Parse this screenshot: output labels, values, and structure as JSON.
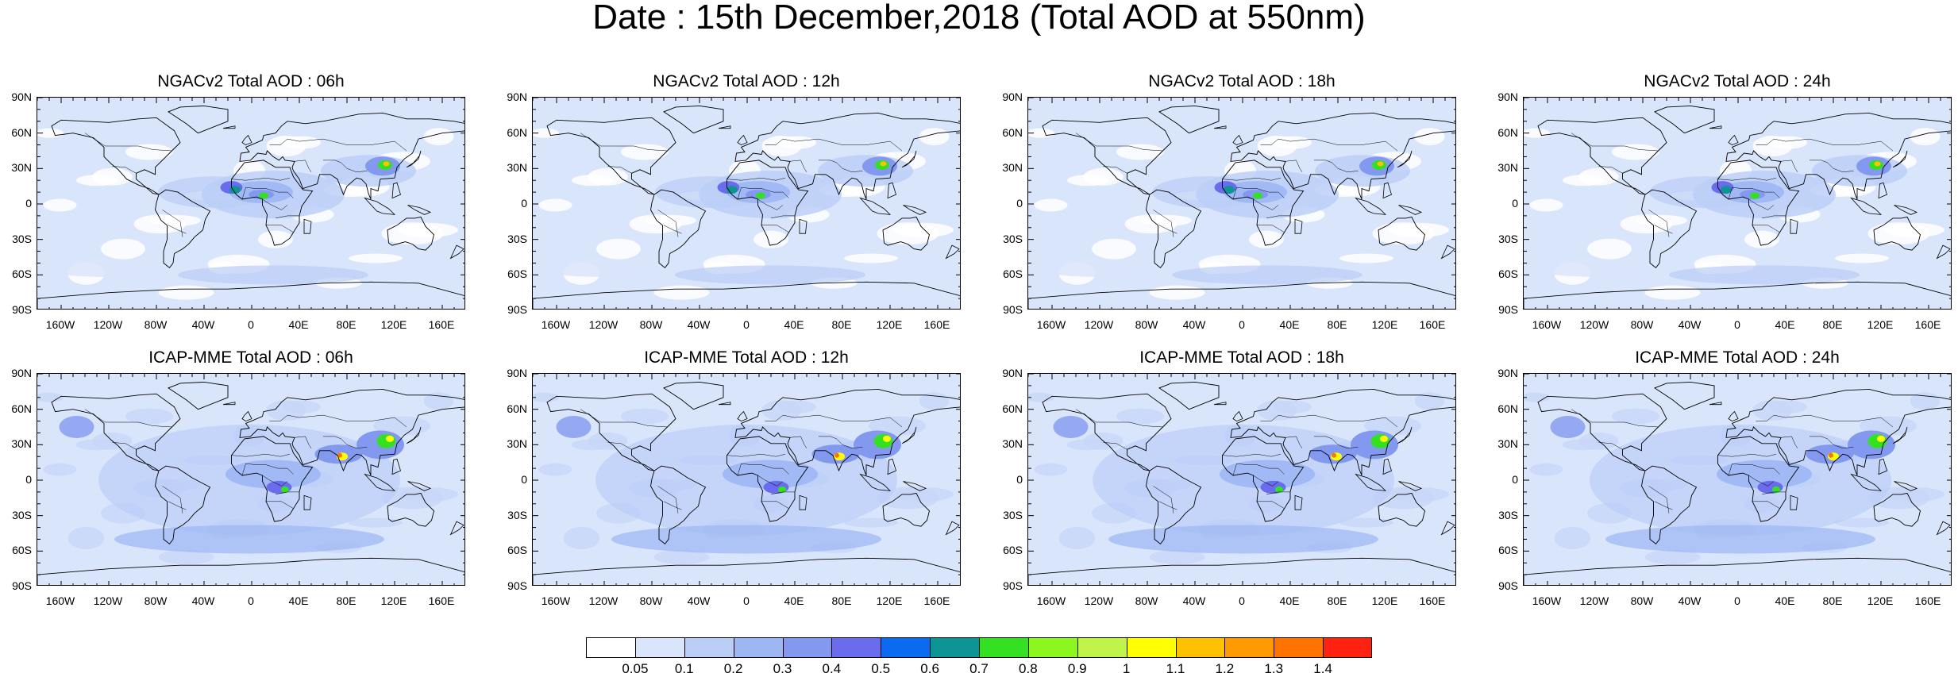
{
  "title": "Date : 15th December,2018 (Total AOD at 550nm)",
  "panels": [
    {
      "title": "NGACv2 Total AOD : 06h",
      "model": "ngac"
    },
    {
      "title": "NGACv2 Total AOD : 12h",
      "model": "ngac"
    },
    {
      "title": "NGACv2 Total AOD : 18h",
      "model": "ngac"
    },
    {
      "title": "NGACv2 Total AOD : 24h",
      "model": "ngac"
    },
    {
      "title": "ICAP-MME Total AOD : 06h",
      "model": "icap"
    },
    {
      "title": "ICAP-MME Total AOD : 12h",
      "model": "icap"
    },
    {
      "title": "ICAP-MME Total AOD : 18h",
      "model": "icap"
    },
    {
      "title": "ICAP-MME Total AOD : 24h",
      "model": "icap"
    }
  ],
  "lat_labels": [
    "90N",
    "60N",
    "30N",
    "0",
    "30S",
    "60S",
    "90S"
  ],
  "lon_labels": [
    "160W",
    "120W",
    "80W",
    "40W",
    "0",
    "40E",
    "80E",
    "120E",
    "160E"
  ],
  "colorbar": {
    "labels": [
      "0.05",
      "0.1",
      "0.2",
      "0.3",
      "0.4",
      "0.5",
      "0.6",
      "0.7",
      "0.8",
      "0.9",
      "1",
      "1.1",
      "1.2",
      "1.3",
      "1.4"
    ],
    "colors": [
      "#ffffff",
      "#d9e5fb",
      "#b9cdf7",
      "#9db6f4",
      "#8399f0",
      "#6b6ced",
      "#0a6bf0",
      "#0e9494",
      "#34e022",
      "#8cf61f",
      "#c0f44b",
      "#ffff00",
      "#ffc200",
      "#ff9a00",
      "#ff7400",
      "#ff2210"
    ]
  }
}
